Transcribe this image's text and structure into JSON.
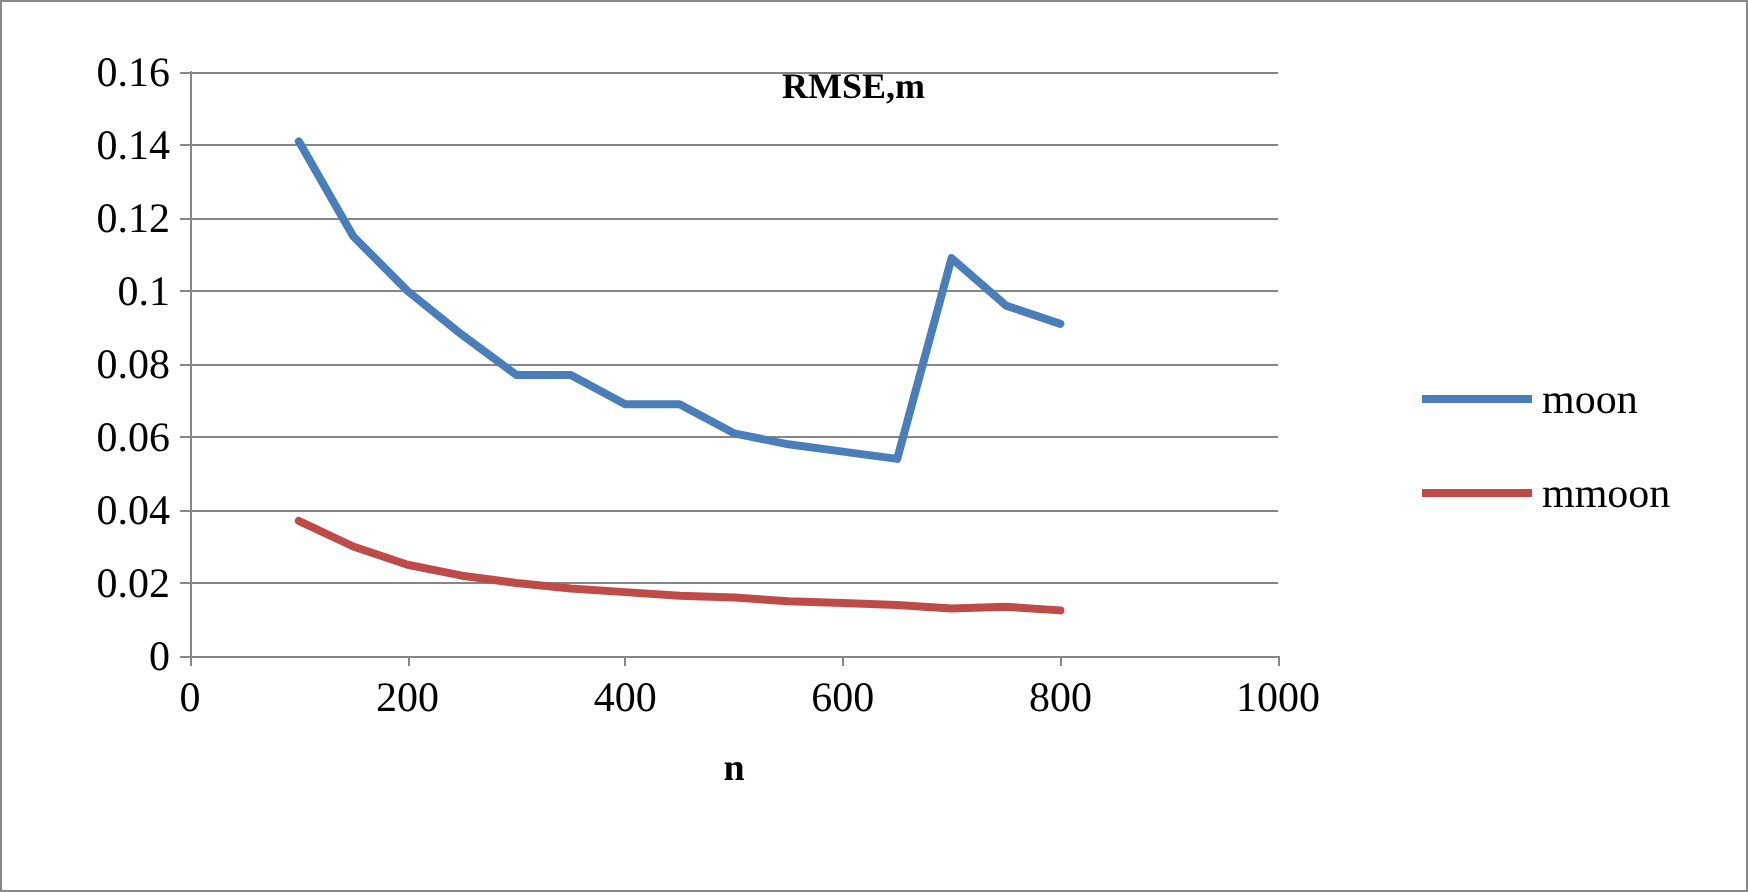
{
  "chart_data": {
    "type": "line",
    "title": "RMSE,m",
    "xlabel": "n",
    "x": [
      100,
      150,
      200,
      250,
      300,
      350,
      400,
      450,
      500,
      550,
      600,
      650,
      700,
      750,
      800
    ],
    "series": [
      {
        "name": "moon",
        "color": "#4a7ebb",
        "values": [
          0.141,
          0.115,
          0.1,
          0.088,
          0.077,
          0.077,
          0.069,
          0.069,
          0.061,
          0.058,
          0.056,
          0.054,
          0.109,
          0.096,
          0.091
        ]
      },
      {
        "name": "mmoon",
        "color": "#be4b48",
        "values": [
          0.037,
          0.03,
          0.025,
          0.022,
          0.02,
          0.0185,
          0.0175,
          0.0165,
          0.016,
          0.015,
          0.0145,
          0.014,
          0.013,
          0.0135,
          0.0125
        ]
      }
    ],
    "xlim": [
      0,
      1000
    ],
    "xticks": [
      0,
      200,
      400,
      600,
      800,
      1000
    ],
    "ylim": [
      0,
      0.16
    ],
    "yticks": [
      0,
      0.02,
      0.04,
      0.06,
      0.08,
      0.1,
      0.12,
      0.14,
      0.16
    ],
    "grid": "y",
    "legend": "right",
    "marker": "none",
    "line_style": "solid"
  }
}
